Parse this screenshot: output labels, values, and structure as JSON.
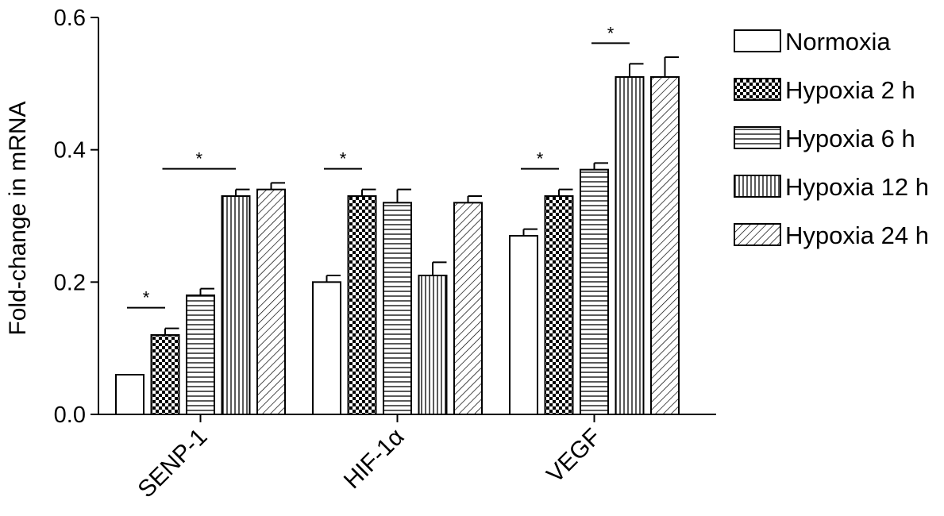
{
  "chart_data": {
    "type": "bar",
    "title": "",
    "xlabel": "",
    "ylabel": "Fold-change in mRNA",
    "ylim": [
      0,
      0.6
    ],
    "yticks": [
      "0.0",
      "0.2",
      "0.4",
      "0.6"
    ],
    "categories": [
      "SENP-1",
      "HIF-1α",
      "VEGF"
    ],
    "series": [
      {
        "name": "Normoxia",
        "values": [
          0.06,
          0.2,
          0.27
        ],
        "errors": [
          0,
          0.01,
          0.01
        ],
        "pattern": "none"
      },
      {
        "name": "Hypoxia 2 h",
        "values": [
          0.12,
          0.33,
          0.33
        ],
        "errors": [
          0.01,
          0.01,
          0.01
        ],
        "pattern": "checker"
      },
      {
        "name": "Hypoxia 6 h",
        "values": [
          0.18,
          0.32,
          0.37
        ],
        "errors": [
          0.01,
          0.02,
          0.01
        ],
        "pattern": "horizontal"
      },
      {
        "name": "Hypoxia 12 h",
        "values": [
          0.33,
          0.21,
          0.51
        ],
        "errors": [
          0.01,
          0.02,
          0.02
        ],
        "pattern": "vertical"
      },
      {
        "name": "Hypoxia 24 h",
        "values": [
          0.34,
          0.32,
          0.51
        ],
        "errors": [
          0.01,
          0.01,
          0.03
        ],
        "pattern": "diagonal"
      }
    ],
    "significance": [
      {
        "category": 0,
        "from_series": 0,
        "to_series": 1,
        "label": "*"
      },
      {
        "category": 0,
        "from_series": 1,
        "to_series": 3,
        "label": "*"
      },
      {
        "category": 1,
        "from_series": 0,
        "to_series": 1,
        "label": "*"
      },
      {
        "category": 2,
        "from_series": 0,
        "to_series": 1,
        "label": "*"
      },
      {
        "category": 2,
        "from_series": 2,
        "to_series": 3,
        "label": "*"
      }
    ],
    "legend_position": "right",
    "grid": false
  }
}
